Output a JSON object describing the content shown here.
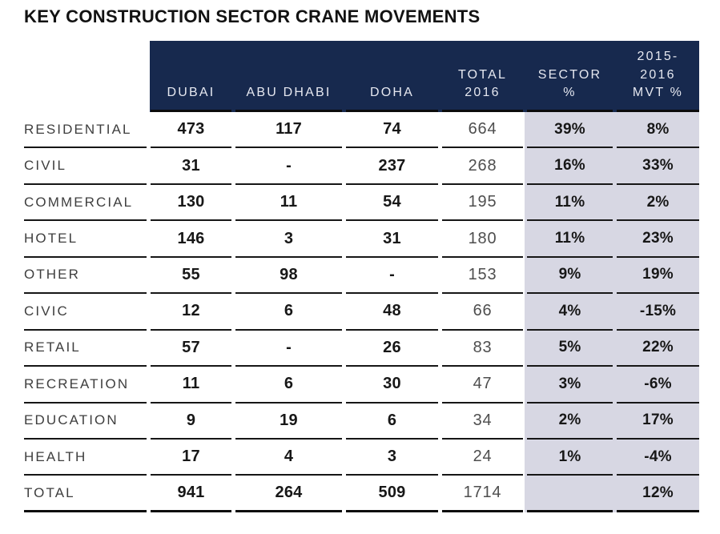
{
  "colors": {
    "header_bg": "#17294e",
    "highlight_bg": "#d7d7e3",
    "line_color": "#161616"
  },
  "display": {
    "header_cells": [
      "DUBAI",
      "ABU DHABI",
      "DOHA",
      "TOTAL\n2016",
      "SECTOR\n%",
      "2015-\n2016\nMVT %"
    ]
  },
  "chart_data": {
    "type": "table",
    "title": "KEY CONSTRUCTION SECTOR CRANE MOVEMENTS",
    "columns": [
      "",
      "DUBAI",
      "ABU DHABI",
      "DOHA",
      "TOTAL 2016",
      "SECTOR %",
      "2015-2016 MVT %"
    ],
    "rows": [
      [
        "RESIDENTIAL",
        473,
        117,
        74,
        664,
        "39%",
        "8%"
      ],
      [
        "CIVIL",
        31,
        "-",
        237,
        268,
        "16%",
        "33%"
      ],
      [
        "COMMERCIAL",
        130,
        11,
        54,
        195,
        "11%",
        "2%"
      ],
      [
        "HOTEL",
        146,
        3,
        31,
        180,
        "11%",
        "23%"
      ],
      [
        "OTHER",
        55,
        98,
        "-",
        153,
        "9%",
        "19%"
      ],
      [
        "CIVIC",
        12,
        6,
        48,
        66,
        "4%",
        "-15%"
      ],
      [
        "RETAIL",
        57,
        "-",
        26,
        83,
        "5%",
        "22%"
      ],
      [
        "RECREATION",
        11,
        6,
        30,
        47,
        "3%",
        "-6%"
      ],
      [
        "EDUCATION",
        9,
        19,
        6,
        34,
        "2%",
        "17%"
      ],
      [
        "HEALTH",
        17,
        4,
        3,
        24,
        "1%",
        "-4%"
      ],
      [
        "TOTAL",
        941,
        264,
        509,
        1714,
        "",
        "12%"
      ]
    ]
  }
}
